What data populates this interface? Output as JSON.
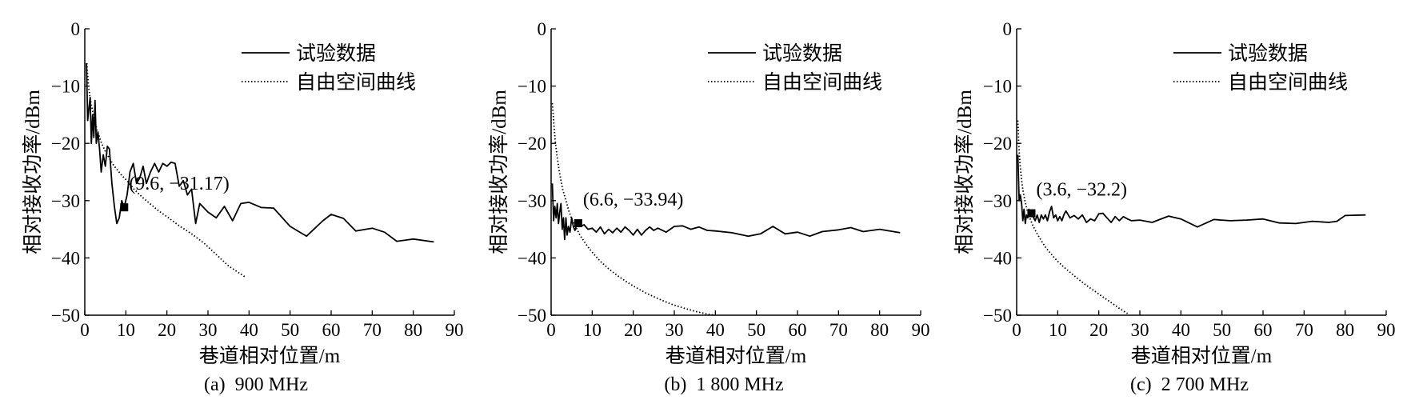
{
  "chart_data": [
    {
      "type": "line",
      "caption": "(a)  900 MHz",
      "xlabel": "巷道相对位置/m",
      "ylabel": "相对接收功率/dBm",
      "xlim": [
        0,
        90
      ],
      "ylim": [
        -50,
        0
      ],
      "xticks": [
        0,
        10,
        20,
        30,
        40,
        50,
        60,
        70,
        80,
        90
      ],
      "yticks": [
        0,
        -10,
        -20,
        -30,
        -40,
        -50
      ],
      "legend_position": "top-right",
      "annotation": {
        "text": "(9.6, −31.17)",
        "x": 9.6,
        "y": -31.17
      },
      "series": [
        {
          "name": "试验数据",
          "style": "solid",
          "x": [
            0.4,
            0.7,
            1.0,
            1.3,
            1.6,
            1.9,
            2.2,
            2.5,
            2.8,
            3.2,
            3.6,
            4.0,
            4.5,
            5.0,
            5.5,
            6.0,
            6.6,
            7.2,
            7.8,
            8.4,
            9.0,
            9.6,
            10.3,
            11.0,
            11.8,
            12.6,
            13.4,
            14.2,
            15.0,
            16.0,
            17.0,
            18.0,
            19.0,
            20.0,
            21.0,
            22.0,
            23.0,
            24.0,
            25.0,
            26.0,
            27.0,
            28.0,
            30.0,
            32.0,
            34.0,
            36.0,
            38.0,
            40.0,
            43.0,
            46.0,
            50.0,
            54.0,
            58.0,
            60.0,
            63.0,
            66.0,
            70.0,
            73.0,
            76.0,
            80.0,
            85.0
          ],
          "y": [
            -6,
            -16,
            -14,
            -12,
            -20,
            -15,
            -19,
            -12.5,
            -20,
            -18,
            -21,
            -25,
            -22,
            -24,
            -20.5,
            -21,
            -27,
            -31,
            -34,
            -33,
            -30,
            -31.17,
            -29,
            -25,
            -23.5,
            -27,
            -26,
            -24,
            -27,
            -25,
            -23.5,
            -25,
            -23.5,
            -24,
            -23.3,
            -23.5,
            -27.5,
            -26.5,
            -29,
            -28,
            -34,
            -30.5,
            -32,
            -33,
            -31,
            -33.5,
            -30.5,
            -30.3,
            -31.2,
            -31.3,
            -34.5,
            -36.2,
            -33.5,
            -32.4,
            -33.1,
            -35.3,
            -34.8,
            -35.5,
            -37.1,
            -36.7,
            -37.2
          ]
        },
        {
          "name": "自由空间曲线",
          "style": "dotted",
          "x": [
            0.5,
            0.7,
            1.0,
            1.4,
            2.0,
            3.0,
            4.0,
            5.0,
            6.0,
            7.0,
            8.0,
            9.0,
            10.0,
            12.0,
            14.0,
            16.0,
            18.0,
            20.0,
            23.0,
            26.0,
            29.0,
            32.0,
            35.0,
            39.0
          ],
          "y": [
            -6,
            -8.2,
            -10.5,
            -12.6,
            -14.7,
            -17.7,
            -19.8,
            -21.4,
            -22.6,
            -23.8,
            -24.7,
            -25.6,
            -26.3,
            -28,
            -29.4,
            -30.6,
            -31.8,
            -32.8,
            -34.4,
            -35.8,
            -37.4,
            -39.4,
            -41.4,
            -43.3
          ]
        }
      ]
    },
    {
      "type": "line",
      "caption": "(b)  1 800 MHz",
      "xlabel": "巷道相对位置/m",
      "ylabel": "相对接收功率/dBm",
      "xlim": [
        0,
        90
      ],
      "ylim": [
        -50,
        0
      ],
      "xticks": [
        0,
        10,
        20,
        30,
        40,
        50,
        60,
        70,
        80,
        90
      ],
      "yticks": [
        0,
        -10,
        -20,
        -30,
        -40,
        -50
      ],
      "legend_position": "top-right",
      "annotation": {
        "text": "(6.6, −33.94)",
        "x": 6.6,
        "y": -33.94
      },
      "series": [
        {
          "name": "试验数据",
          "style": "solid",
          "x": [
            0.3,
            0.6,
            0.9,
            1.2,
            1.5,
            1.8,
            2.1,
            2.4,
            2.7,
            3.0,
            3.3,
            3.6,
            3.9,
            4.2,
            4.6,
            5.0,
            5.4,
            5.8,
            6.2,
            6.6,
            7.2,
            8.0,
            9.0,
            10.0,
            11.0,
            12.0,
            13.0,
            14.0,
            15.0,
            16.0,
            17.0,
            18.0,
            19.0,
            20.0,
            21.0,
            22.0,
            23.0,
            24.0,
            25.0,
            26.0,
            28.0,
            30.0,
            32.0,
            34.0,
            36.0,
            38.0,
            40.0,
            44.0,
            48.0,
            51.0,
            54.0,
            57.0,
            60.0,
            63.0,
            66.0,
            70.0,
            73.0,
            76.0,
            80.0,
            85.0
          ],
          "y": [
            -27,
            -33.5,
            -31,
            -33,
            -30.5,
            -34,
            -32,
            -30.5,
            -35,
            -33,
            -36.8,
            -33,
            -36,
            -34.5,
            -35.5,
            -33,
            -34.5,
            -35.2,
            -34.2,
            -33.94,
            -34.5,
            -34.2,
            -35,
            -34.8,
            -35.5,
            -34.6,
            -35.8,
            -35,
            -35.6,
            -34.8,
            -35.5,
            -34.6,
            -35.2,
            -36,
            -35,
            -36,
            -35.2,
            -34.6,
            -35.2,
            -34.8,
            -35.5,
            -34.5,
            -34.4,
            -35,
            -34.6,
            -35.2,
            -35.3,
            -35.6,
            -36.2,
            -35.8,
            -34.5,
            -35.8,
            -35.5,
            -36.2,
            -35.4,
            -35.1,
            -34.7,
            -35.4,
            -35,
            -35.6
          ]
        },
        {
          "name": "自由空间曲线",
          "style": "dotted",
          "x": [
            0.3,
            0.5,
            0.7,
            1.0,
            1.4,
            2.0,
            2.8,
            3.6,
            4.4,
            5.2,
            6.0,
            7.0,
            8.0,
            9.0,
            10.0,
            12.0,
            14.0,
            16.0,
            18.0,
            20.0,
            23.0,
            26.0,
            29.0,
            32.0,
            35.0,
            38.0,
            40.0
          ],
          "y": [
            -13,
            -15,
            -17,
            -19.5,
            -22,
            -25,
            -28,
            -30,
            -32,
            -33.5,
            -34.6,
            -36,
            -37.1,
            -38.1,
            -39,
            -40.6,
            -41.9,
            -43,
            -44,
            -44.9,
            -46.1,
            -47.1,
            -48,
            -48.7,
            -49.3,
            -49.8,
            -50
          ]
        }
      ]
    },
    {
      "type": "line",
      "caption": "(c)  2 700 MHz",
      "xlabel": "巷道相对位置/m",
      "ylabel": "相对接收功率/dBm",
      "xlim": [
        0,
        90
      ],
      "ylim": [
        -50,
        0
      ],
      "xticks": [
        0,
        10,
        20,
        30,
        40,
        50,
        60,
        70,
        80,
        90
      ],
      "yticks": [
        0,
        -10,
        -20,
        -30,
        -40,
        -50
      ],
      "legend_position": "top-right",
      "annotation": {
        "text": "(3.6, −32.2)",
        "x": 3.6,
        "y": -32.2
      },
      "series": [
        {
          "name": "试验数据",
          "style": "solid",
          "x": [
            0.3,
            0.6,
            0.9,
            1.2,
            1.5,
            1.8,
            2.1,
            2.4,
            2.7,
            3.0,
            3.3,
            3.6,
            4.0,
            4.5,
            5.0,
            5.5,
            6.0,
            6.5,
            7.0,
            7.5,
            8.0,
            8.5,
            9.0,
            9.5,
            10.0,
            10.5,
            11.0,
            11.5,
            12.0,
            13.0,
            14.0,
            15.0,
            16.0,
            17.0,
            18.0,
            19.0,
            20.0,
            21.0,
            22.0,
            23.0,
            24.0,
            25.0,
            26.0,
            27.0,
            28.0,
            30.0,
            33.0,
            37.0,
            40.0,
            44.0,
            48.0,
            52.0,
            56.0,
            60.0,
            64.0,
            68.0,
            72.0,
            76.0,
            78.0,
            80.0,
            85.0
          ],
          "y": [
            -22,
            -30,
            -29,
            -30.5,
            -33.5,
            -31.5,
            -34,
            -32.5,
            -33,
            -31.5,
            -32.5,
            -32.2,
            -32.8,
            -33.5,
            -32.5,
            -33.8,
            -32.5,
            -33.2,
            -32.5,
            -33.5,
            -32,
            -31,
            -33,
            -32.5,
            -33.5,
            -32.8,
            -33.5,
            -32.5,
            -31.8,
            -33,
            -32.6,
            -33.2,
            -32.5,
            -33.8,
            -33.2,
            -33.5,
            -32.3,
            -32.2,
            -33,
            -33.8,
            -32.8,
            -33.5,
            -32.8,
            -33.2,
            -33.5,
            -33.4,
            -33.8,
            -32.7,
            -33.2,
            -34.6,
            -33.3,
            -33.5,
            -33.4,
            -33.2,
            -33.9,
            -34,
            -33.6,
            -33.8,
            -33.6,
            -32.6,
            -32.5
          ]
        },
        {
          "name": "自由空间曲线",
          "style": "dotted",
          "x": [
            0.3,
            0.5,
            0.8,
            1.2,
            1.6,
            2.0,
            2.6,
            3.2,
            3.8,
            4.4,
            5.0,
            6.0,
            7.0,
            8.0,
            9.0,
            10.0,
            11.5,
            13.0,
            15.0,
            17.0,
            19.0,
            21.0,
            23.0,
            25.0,
            27.0
          ],
          "y": [
            -16,
            -20,
            -23.5,
            -26.5,
            -28.5,
            -30,
            -31.7,
            -33,
            -34.1,
            -35,
            -35.8,
            -37,
            -38.1,
            -39,
            -39.8,
            -40.6,
            -41.6,
            -42.5,
            -43.7,
            -44.8,
            -45.8,
            -46.8,
            -47.8,
            -48.8,
            -49.7
          ]
        }
      ]
    }
  ]
}
